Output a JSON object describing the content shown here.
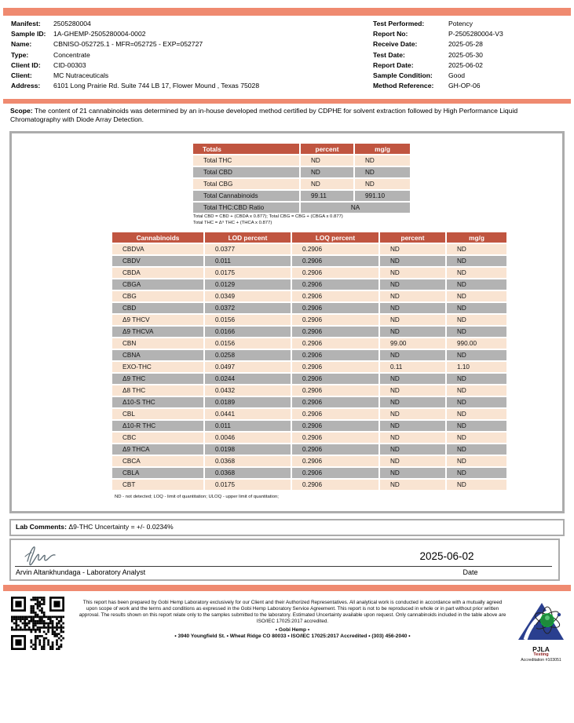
{
  "colors": {
    "accent_bar": "#EF8A70",
    "table_header": "#C05540",
    "row_gray": "#B3B3B3",
    "row_peach": "#F9E4D2"
  },
  "header": {
    "left": [
      {
        "label": "Manifest:",
        "value": "2505280004"
      },
      {
        "label": "Sample ID:",
        "value": "1A-GHEMP-2505280004-0002"
      },
      {
        "label": "Name:",
        "value": "CBNISO-052725.1 - MFR=052725 - EXP=052727"
      },
      {
        "label": "Type:",
        "value": "Concentrate"
      },
      {
        "label": "Client ID:",
        "value": "CID-00303"
      },
      {
        "label": "Client:",
        "value": "MC Nutraceuticals"
      },
      {
        "label": "Address:",
        "value": "6101 Long Prairie Rd. Suite 744 LB 17, Flower Mound , Texas 75028"
      }
    ],
    "right": [
      {
        "label": "Test Performed:",
        "value": "Potency"
      },
      {
        "label": "Report No:",
        "value": "P-2505280004-V3"
      },
      {
        "label": "Receive Date:",
        "value": "2025-05-28"
      },
      {
        "label": "Test Date:",
        "value": "2025-05-30"
      },
      {
        "label": "Report Date:",
        "value": "2025-06-02"
      },
      {
        "label": "Sample Condition:",
        "value": "Good"
      },
      {
        "label": "Method Reference:",
        "value": "GH-OP-06"
      }
    ]
  },
  "scope": {
    "label": "Scope:",
    "text": " The content of 21 cannabinoids was determined by an in-house developed method certified by CDPHE for solvent extraction followed by High Performance Liquid Chromatography with Diode Array Detection."
  },
  "totals_table": {
    "headers": [
      "Totals",
      "percent",
      "mg/g"
    ],
    "rows": [
      {
        "label": "Total THC",
        "percent": "ND",
        "mgg": "ND"
      },
      {
        "label": "Total CBD",
        "percent": "ND",
        "mgg": "ND"
      },
      {
        "label": "Total CBG",
        "percent": "ND",
        "mgg": "ND"
      },
      {
        "label": "Total Cannabinoids",
        "percent": "99.11",
        "mgg": "991.10"
      }
    ],
    "ratio_row": {
      "label": "Total THC:CBD Ratio",
      "value": "NA"
    },
    "footnote1": "Total CBD = CBD + (CBDA x 0.877); Total CBG = CBG + (CBGA x 0.877)",
    "footnote2": "Total THC = Δ⁹ THC + (THCA x 0.877)"
  },
  "cannabinoid_table": {
    "headers": [
      "Cannabinoids",
      "LOD percent",
      "LOQ percent",
      "percent",
      "mg/g"
    ],
    "rows": [
      {
        "name": "CBDVA",
        "lod": "0.0377",
        "loq": "0.2906",
        "percent": "ND",
        "mgg": "ND"
      },
      {
        "name": "CBDV",
        "lod": "0.011",
        "loq": "0.2906",
        "percent": "ND",
        "mgg": "ND"
      },
      {
        "name": "CBDA",
        "lod": "0.0175",
        "loq": "0.2906",
        "percent": "ND",
        "mgg": "ND"
      },
      {
        "name": "CBGA",
        "lod": "0.0129",
        "loq": "0.2906",
        "percent": "ND",
        "mgg": "ND"
      },
      {
        "name": "CBG",
        "lod": "0.0349",
        "loq": "0.2906",
        "percent": "ND",
        "mgg": "ND"
      },
      {
        "name": "CBD",
        "lod": "0.0372",
        "loq": "0.2906",
        "percent": "ND",
        "mgg": "ND"
      },
      {
        "name": "Δ9 THCV",
        "lod": "0.0156",
        "loq": "0.2906",
        "percent": "ND",
        "mgg": "ND"
      },
      {
        "name": "Δ9 THCVA",
        "lod": "0.0166",
        "loq": "0.2906",
        "percent": "ND",
        "mgg": "ND"
      },
      {
        "name": "CBN",
        "lod": "0.0156",
        "loq": "0.2906",
        "percent": "99.00",
        "mgg": "990.00"
      },
      {
        "name": "CBNA",
        "lod": "0.0258",
        "loq": "0.2906",
        "percent": "ND",
        "mgg": "ND"
      },
      {
        "name": "EXO-THC",
        "lod": "0.0497",
        "loq": "0.2906",
        "percent": "0.11",
        "mgg": "1.10"
      },
      {
        "name": "Δ9 THC",
        "lod": "0.0244",
        "loq": "0.2906",
        "percent": "ND",
        "mgg": "ND"
      },
      {
        "name": "Δ8 THC",
        "lod": "0.0432",
        "loq": "0.2906",
        "percent": "ND",
        "mgg": "ND"
      },
      {
        "name": "Δ10-S THC",
        "lod": "0.0189",
        "loq": "0.2906",
        "percent": "ND",
        "mgg": "ND"
      },
      {
        "name": "CBL",
        "lod": "0.0441",
        "loq": "0.2906",
        "percent": "ND",
        "mgg": "ND"
      },
      {
        "name": "Δ10-R THC",
        "lod": "0.011",
        "loq": "0.2906",
        "percent": "ND",
        "mgg": "ND"
      },
      {
        "name": "CBC",
        "lod": "0.0046",
        "loq": "0.2906",
        "percent": "ND",
        "mgg": "ND"
      },
      {
        "name": "Δ9 THCA",
        "lod": "0.0198",
        "loq": "0.2906",
        "percent": "ND",
        "mgg": "ND"
      },
      {
        "name": "CBCA",
        "lod": "0.0368",
        "loq": "0.2906",
        "percent": "ND",
        "mgg": "ND"
      },
      {
        "name": "CBLA",
        "lod": "0.0368",
        "loq": "0.2906",
        "percent": "ND",
        "mgg": "ND"
      },
      {
        "name": "CBT",
        "lod": "0.0175",
        "loq": "0.2906",
        "percent": "ND",
        "mgg": "ND"
      }
    ],
    "footnote": "ND - not detected; LOQ - limit of quantitation; ULOQ - upper limit of quantitation;"
  },
  "lab_comments": {
    "label": "Lab Comments:",
    "text": " Δ9-THC Uncertainty = +/- 0.0234%"
  },
  "signature": {
    "analyst": "Arvin Altankhundaga - Laboratory Analyst",
    "date_value": "2025-06-02",
    "date_label": "Date"
  },
  "footer": {
    "disclaimer_lines": "This report has been prepared by Gobi Hemp Laboratory exclusively for our Client and their Authorized Representatives. All analytical work is conducted in accordance with a mutually agreed upon scope of work and the terms and conditions as expressed in the Gobi Hemp Laboratory Service Agreement. This report is not to be reproduced in whole or in part without prior written approval. The results shown on this report relate only to the samples submitted to the laboratory. Estimated Uncertainty available upon request. Only cannabinoids included in the table above are ISO/IEC 17025:2017 accredited.",
    "company_line": "• Gobi Hemp •",
    "address_line": "• 3940 Youngfield St. • Wheat Ridge CO 80033 • ISO/IEC 17025:2017 Accredited • (303) 456-2040 •",
    "pjla_name": "PJLA",
    "pjla_sub": "Testing",
    "pjla_accreditation": "Accreditation #103051"
  }
}
